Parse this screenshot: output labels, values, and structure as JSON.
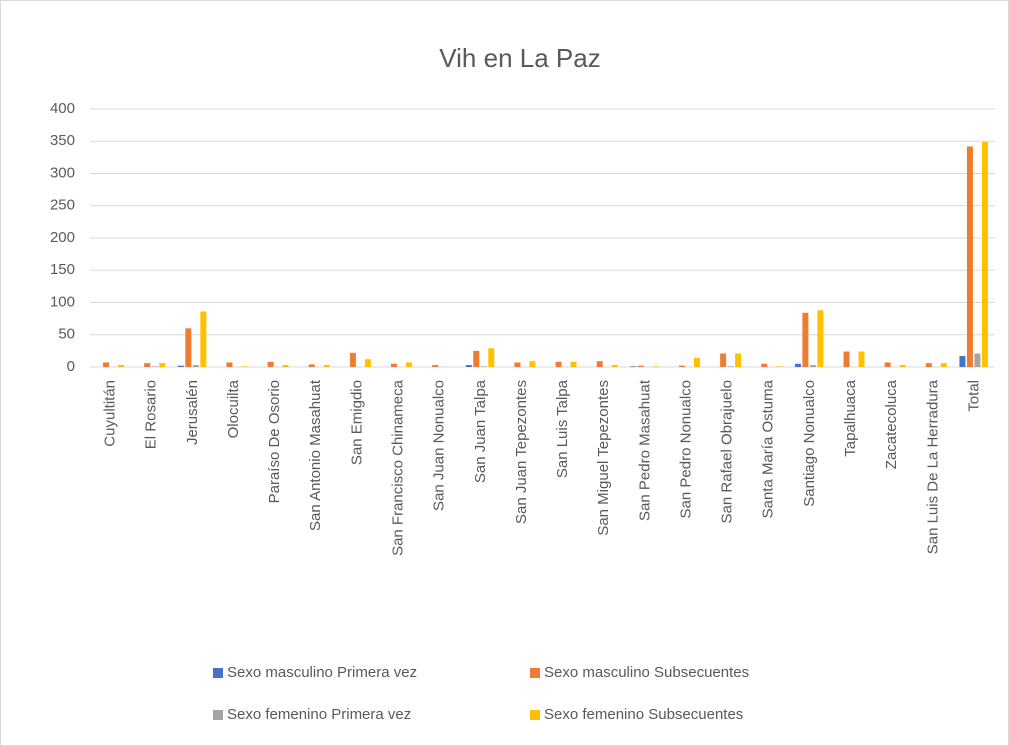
{
  "chart_data": {
    "type": "bar",
    "title": "Vih en La Paz",
    "categories": [
      "Cuyultitán",
      "El Rosario",
      "Jerusalén",
      "Olocuilta",
      "Paraíso De Osorio",
      "San Antonio Masahuat",
      "San Emigdio",
      "San Francisco Chinameca",
      "San Juan Nonualco",
      "San Juan Talpa",
      "San Juan Tepezontes",
      "San Luis Talpa",
      "San Miguel Tepezontes",
      "San Pedro Masahuat",
      "San Pedro Nonualco",
      "San Rafael Obrajuelo",
      "Santa María Ostuma",
      "Santiago Nonualco",
      "Tapalhuaca",
      "Zacatecoluca",
      "San Luis De La Herradura",
      "Total"
    ],
    "series": [
      {
        "name": "Sexo masculino Primera vez",
        "color": "#4472c4",
        "values": [
          0,
          0,
          2,
          0,
          0,
          0,
          0,
          0,
          0,
          3,
          0,
          0,
          0,
          1,
          0,
          0,
          0,
          5,
          0,
          0,
          0,
          17
        ]
      },
      {
        "name": "Sexo masculino Subsecuentes",
        "color": "#ed7d31",
        "values": [
          7,
          6,
          60,
          7,
          8,
          4,
          22,
          5,
          3,
          25,
          7,
          8,
          9,
          2,
          2,
          21,
          5,
          84,
          24,
          7,
          6,
          342
        ]
      },
      {
        "name": "Sexo femenino Primera vez",
        "color": "#a5a5a5",
        "values": [
          0,
          1,
          3,
          0,
          0,
          0,
          0,
          0,
          0,
          1,
          0,
          0,
          0,
          0,
          0,
          1,
          0,
          3,
          0,
          0,
          0,
          21
        ]
      },
      {
        "name": "Sexo femenino Subsecuentes",
        "color": "#ffc000",
        "values": [
          3,
          6,
          86,
          1,
          3,
          3,
          12,
          7,
          0,
          29,
          9,
          8,
          3,
          1,
          14,
          21,
          1,
          88,
          24,
          3,
          6,
          349
        ]
      }
    ],
    "ylim": [
      0,
      400
    ],
    "yticks": [
      0,
      50,
      100,
      150,
      200,
      250,
      300,
      350,
      400
    ],
    "grid": true,
    "legend": "bottom"
  }
}
